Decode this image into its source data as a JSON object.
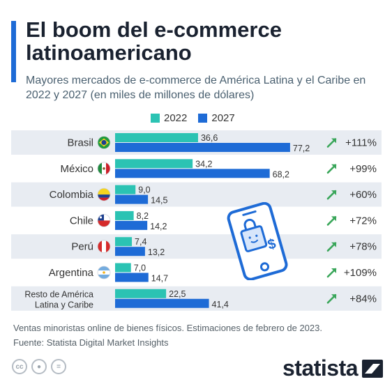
{
  "header": {
    "title": "El boom del e-commerce latinoamericano",
    "subtitle": "Mayores mercados de e-commerce de América Latina y el Caribe en 2022 y 2027 (en miles de millones de dólares)"
  },
  "footer": {
    "note": "Ventas minoristas online de bienes físicos. Estimaciones de febrero de 2023.",
    "source": "Fuente: Statista Digital Market Insights",
    "brand": "statista",
    "license_icons": [
      "cc-icon",
      "person-icon",
      "equals-icon"
    ],
    "license_glyphs": [
      "cc",
      "●",
      "="
    ]
  },
  "colors": {
    "s2022": "#2bc3b3",
    "s2027": "#1e6bd6",
    "row_band": "#e8ecf2",
    "growth_arrow": "#3aa65a",
    "accent": "#1e6bd6"
  },
  "chart_data": {
    "type": "bar",
    "orientation": "horizontal",
    "categories": [
      "Brasil",
      "México",
      "Colombia",
      "Chile",
      "Perú",
      "Argentina",
      "Resto de América Latina y Caribe"
    ],
    "category_lines": [
      [
        "Brasil"
      ],
      [
        "México"
      ],
      [
        "Colombia"
      ],
      [
        "Chile"
      ],
      [
        "Perú"
      ],
      [
        "Argentina"
      ],
      [
        "Resto de América",
        "Latina y Caribe"
      ]
    ],
    "flags": [
      "brazil-flag-icon",
      "mexico-flag-icon",
      "colombia-flag-icon",
      "chile-flag-icon",
      "peru-flag-icon",
      "argentina-flag-icon",
      null
    ],
    "series": [
      {
        "name": "2022",
        "values": [
          36.6,
          34.2,
          9.0,
          8.2,
          7.4,
          7.0,
          22.5
        ],
        "labels": [
          "36,6",
          "34,2",
          "9,0",
          "8,2",
          "7,4",
          "7,0",
          "22,5"
        ]
      },
      {
        "name": "2027",
        "values": [
          77.2,
          68.2,
          14.5,
          14.2,
          13.2,
          14.7,
          41.4
        ],
        "labels": [
          "77,2",
          "68,2",
          "14,5",
          "14,2",
          "13,2",
          "14,7",
          "41,4"
        ]
      }
    ],
    "growth": [
      "+111%",
      "+99%",
      "+60%",
      "+72%",
      "+78%",
      "+109%",
      "+84%"
    ],
    "xlim": [
      0,
      80
    ],
    "xlabel": "",
    "ylabel": "",
    "grid": false,
    "legend": "top"
  }
}
